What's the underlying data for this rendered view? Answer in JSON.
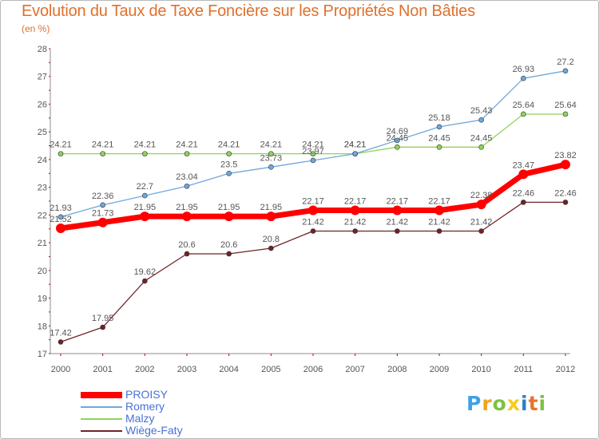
{
  "header": {
    "title": "Evolution du Taux de Taxe Foncière sur les Propriétés Non Bâties",
    "subtitle": "(en %)"
  },
  "logo": {
    "text": "Proxiti",
    "letters": [
      {
        "char": "P",
        "color": "#3fa2e6"
      },
      {
        "char": "r",
        "color": "#f0a31d"
      },
      {
        "char": "o",
        "color": "#7cc242"
      },
      {
        "char": "x",
        "color": "#f5cc1a"
      },
      {
        "char": "i",
        "color": "#2b7fc8"
      },
      {
        "char": "t",
        "color": "#e8722c"
      },
      {
        "char": "i",
        "color": "#7cc242"
      }
    ]
  },
  "colors": {
    "title": "#e0702c",
    "legend_text": "#4a6fd8",
    "axis": "#8c8c8c",
    "tick_marks": "#cc0000"
  },
  "chart_data": {
    "type": "line",
    "title": "Evolution du Taux de Taxe Foncière sur les Propriétés Non Bâties",
    "ylabel": "(en %)",
    "xlabel": "",
    "ylim": [
      17,
      28
    ],
    "yticks": [
      17,
      18,
      19,
      20,
      21,
      22,
      23,
      24,
      25,
      26,
      27,
      28
    ],
    "grid": false,
    "legend_position": "bottom-left",
    "x": [
      "2000",
      "2001",
      "2002",
      "2003",
      "2004",
      "2005",
      "2006",
      "2007",
      "2008",
      "2009",
      "2010",
      "2011",
      "2012"
    ],
    "series": [
      {
        "name": "PROISY",
        "color": "#ff0000",
        "values": [
          21.52,
          21.73,
          21.95,
          21.95,
          21.95,
          21.95,
          22.17,
          22.17,
          22.17,
          22.17,
          22.38,
          23.47,
          23.82
        ],
        "labels": [
          "21.52",
          "21.73",
          "21.95",
          "21.95",
          "21.95",
          "21.95",
          "22.17",
          "22.17",
          "22.17",
          "22.17",
          "22.38",
          "23.47",
          "23.82"
        ]
      },
      {
        "name": "Romery",
        "color": "#6fa8dc",
        "values": [
          21.93,
          22.36,
          22.7,
          23.04,
          23.5,
          23.73,
          23.97,
          24.21,
          24.69,
          25.18,
          25.43,
          26.93,
          27.2
        ],
        "labels": [
          "21.93",
          "22.36",
          "22.7",
          "23.04",
          "23.5",
          "23.73",
          "23.97",
          "24.21",
          "24.69",
          "25.18",
          "25.43",
          "26.93",
          "27.2"
        ]
      },
      {
        "name": "Malzy",
        "color": "#8fd35a",
        "values": [
          24.21,
          24.21,
          24.21,
          24.21,
          24.21,
          24.21,
          24.21,
          24.21,
          24.45,
          24.45,
          24.45,
          25.64,
          25.64
        ],
        "labels": [
          "24.21",
          "24.21",
          "24.21",
          "24.21",
          "24.21",
          "24.21",
          "24.21",
          "24.21",
          "24.45",
          "24.45",
          "24.45",
          "25.64",
          "25.64"
        ]
      },
      {
        "name": "Wiège-Faty",
        "color": "#6e2328",
        "values": [
          17.42,
          17.95,
          19.62,
          20.6,
          20.6,
          20.8,
          21.42,
          21.42,
          21.42,
          21.42,
          21.42,
          22.46,
          22.46
        ],
        "labels": [
          "17.42",
          "17.95",
          "19.62",
          "20.6",
          "20.6",
          "20.8",
          "21.42",
          "21.42",
          "21.42",
          "21.42",
          "21.42",
          "22.46",
          "22.46"
        ]
      }
    ]
  }
}
